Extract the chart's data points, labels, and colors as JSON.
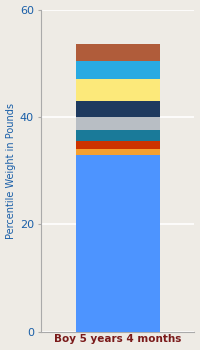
{
  "category": "Boy 5 years 4 months",
  "segments": [
    {
      "value": 33.0,
      "color": "#4d94ff"
    },
    {
      "value": 1.0,
      "color": "#f5a030"
    },
    {
      "value": 1.5,
      "color": "#cc3300"
    },
    {
      "value": 2.0,
      "color": "#1a7a99"
    },
    {
      "value": 2.5,
      "color": "#b8bec4"
    },
    {
      "value": 3.0,
      "color": "#1e3a5f"
    },
    {
      "value": 4.0,
      "color": "#fce97a"
    },
    {
      "value": 3.5,
      "color": "#29aae2"
    },
    {
      "value": 3.0,
      "color": "#b05c3a"
    }
  ],
  "ylabel": "Percentile Weight in Pounds",
  "ylim": [
    0,
    60
  ],
  "yticks": [
    0,
    20,
    40,
    60
  ],
  "background_color": "#eeebe5",
  "ylabel_color": "#1a5fa8",
  "xlabel_color": "#7a1a1a",
  "grid_color": "#ffffff",
  "bar_width": 0.55,
  "title": ""
}
